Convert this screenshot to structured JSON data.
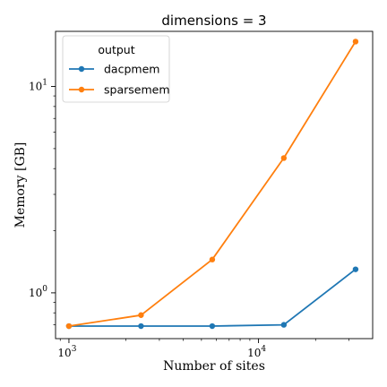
{
  "chart_data": {
    "type": "line",
    "title": "dimensions = 3",
    "xlabel": "Number of sites",
    "ylabel": "Memory [GB]",
    "xscale": "log",
    "yscale": "log",
    "xlim": [
      850,
      40000
    ],
    "ylim": [
      0.6,
      18.5
    ],
    "x_ticks": [
      {
        "value": 1000,
        "base": "10",
        "exp": "3"
      },
      {
        "value": 10000,
        "base": "10",
        "exp": "4"
      }
    ],
    "y_ticks": [
      {
        "value": 1,
        "base": "10",
        "exp": "0"
      },
      {
        "value": 10,
        "base": "10",
        "exp": "1"
      }
    ],
    "grid": false,
    "legend": {
      "title": "output",
      "placement": "top-left"
    },
    "x": [
      1000,
      2400,
      5700,
      13600,
      32500
    ],
    "series": [
      {
        "name": "dacpmem",
        "color": "#1f77b4",
        "values": [
          0.69,
          0.69,
          0.69,
          0.7,
          1.3
        ]
      },
      {
        "name": "sparsemem",
        "color": "#ff7f0e",
        "values": [
          0.69,
          0.78,
          1.45,
          4.5,
          16.5
        ]
      }
    ]
  }
}
